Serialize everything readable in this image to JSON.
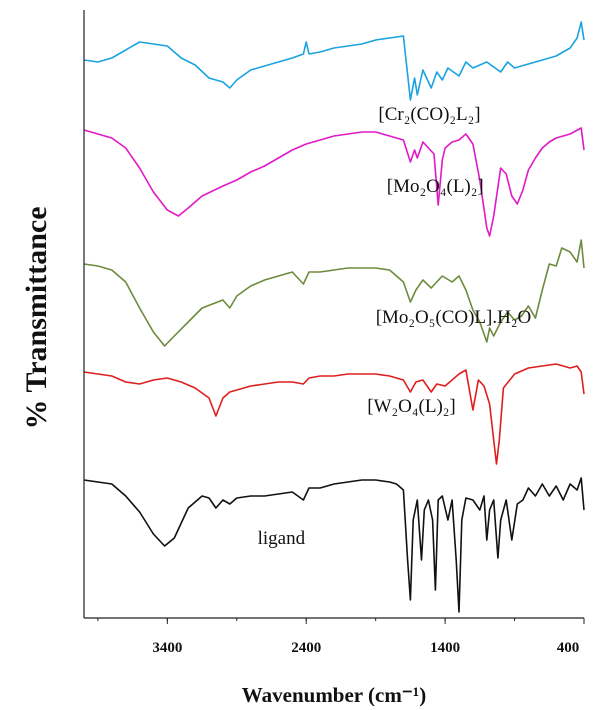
{
  "chart_data": {
    "type": "line",
    "title": "",
    "xlabel": "Wavenumber (cm⁻¹)",
    "ylabel": "% Transmittance",
    "xlim": [
      4000,
      400
    ],
    "x_reversed": true,
    "xticks": [
      3400,
      2400,
      1400,
      400
    ],
    "yticks": [],
    "grid": false,
    "legend": "inline labels under each trace",
    "colors": {
      "Cr": "#1aa3e0",
      "Mo2O4": "#e019c9",
      "Mo2O5": "#6e8b3d",
      "W": "#e01e1e",
      "ligand": "#111111"
    },
    "series": [
      {
        "name": "[Cr₂(CO)₂L₂]",
        "key": "Cr",
        "points": [
          [
            4000,
            60
          ],
          [
            3900,
            62
          ],
          [
            3800,
            58
          ],
          [
            3700,
            50
          ],
          [
            3600,
            42
          ],
          [
            3500,
            44
          ],
          [
            3400,
            46
          ],
          [
            3300,
            58
          ],
          [
            3200,
            65
          ],
          [
            3100,
            78
          ],
          [
            3000,
            82
          ],
          [
            2950,
            88
          ],
          [
            2900,
            80
          ],
          [
            2800,
            70
          ],
          [
            2700,
            66
          ],
          [
            2600,
            62
          ],
          [
            2500,
            58
          ],
          [
            2420,
            54
          ],
          [
            2400,
            42
          ],
          [
            2380,
            54
          ],
          [
            2300,
            52
          ],
          [
            2200,
            48
          ],
          [
            2100,
            46
          ],
          [
            2000,
            44
          ],
          [
            1900,
            40
          ],
          [
            1800,
            38
          ],
          [
            1700,
            36
          ],
          [
            1650,
            100
          ],
          [
            1620,
            78
          ],
          [
            1600,
            95
          ],
          [
            1560,
            70
          ],
          [
            1500,
            88
          ],
          [
            1460,
            72
          ],
          [
            1420,
            80
          ],
          [
            1380,
            68
          ],
          [
            1300,
            76
          ],
          [
            1250,
            62
          ],
          [
            1200,
            68
          ],
          [
            1100,
            62
          ],
          [
            1000,
            72
          ],
          [
            950,
            62
          ],
          [
            900,
            68
          ],
          [
            800,
            64
          ],
          [
            700,
            60
          ],
          [
            600,
            56
          ],
          [
            500,
            48
          ],
          [
            450,
            38
          ],
          [
            420,
            22
          ],
          [
            400,
            40
          ]
        ],
        "label_pos": [
          1880,
          120
        ]
      },
      {
        "name": "[Mo₂O₄(L)₂]",
        "key": "Mo2O4",
        "points": [
          [
            4000,
            130
          ],
          [
            3900,
            134
          ],
          [
            3800,
            138
          ],
          [
            3700,
            148
          ],
          [
            3600,
            168
          ],
          [
            3500,
            192
          ],
          [
            3400,
            210
          ],
          [
            3320,
            216
          ],
          [
            3250,
            208
          ],
          [
            3150,
            196
          ],
          [
            3000,
            186
          ],
          [
            2900,
            180
          ],
          [
            2800,
            172
          ],
          [
            2700,
            166
          ],
          [
            2600,
            158
          ],
          [
            2500,
            150
          ],
          [
            2400,
            144
          ],
          [
            2300,
            140
          ],
          [
            2200,
            136
          ],
          [
            2100,
            134
          ],
          [
            2000,
            132
          ],
          [
            1900,
            132
          ],
          [
            1800,
            136
          ],
          [
            1700,
            140
          ],
          [
            1650,
            162
          ],
          [
            1620,
            150
          ],
          [
            1600,
            158
          ],
          [
            1560,
            142
          ],
          [
            1480,
            154
          ],
          [
            1450,
            205
          ],
          [
            1420,
            160
          ],
          [
            1400,
            148
          ],
          [
            1350,
            142
          ],
          [
            1300,
            140
          ],
          [
            1250,
            134
          ],
          [
            1200,
            144
          ],
          [
            1150,
            180
          ],
          [
            1100,
            228
          ],
          [
            1080,
            236
          ],
          [
            1050,
            216
          ],
          [
            1000,
            168
          ],
          [
            960,
            174
          ],
          [
            920,
            196
          ],
          [
            880,
            204
          ],
          [
            840,
            190
          ],
          [
            800,
            170
          ],
          [
            750,
            158
          ],
          [
            700,
            148
          ],
          [
            650,
            142
          ],
          [
            600,
            138
          ],
          [
            500,
            134
          ],
          [
            420,
            128
          ],
          [
            400,
            150
          ]
        ],
        "label_pos": [
          1820,
          192
        ]
      },
      {
        "name": "[Mo₂O₅(CO)L].H₂O",
        "key": "Mo2O5",
        "points": [
          [
            4000,
            264
          ],
          [
            3900,
            266
          ],
          [
            3800,
            270
          ],
          [
            3700,
            282
          ],
          [
            3600,
            308
          ],
          [
            3500,
            332
          ],
          [
            3420,
            346
          ],
          [
            3350,
            336
          ],
          [
            3250,
            322
          ],
          [
            3150,
            308
          ],
          [
            3000,
            300
          ],
          [
            2950,
            308
          ],
          [
            2900,
            296
          ],
          [
            2800,
            286
          ],
          [
            2700,
            280
          ],
          [
            2600,
            276
          ],
          [
            2500,
            272
          ],
          [
            2420,
            284
          ],
          [
            2380,
            272
          ],
          [
            2300,
            272
          ],
          [
            2200,
            270
          ],
          [
            2100,
            268
          ],
          [
            2000,
            268
          ],
          [
            1900,
            268
          ],
          [
            1800,
            270
          ],
          [
            1700,
            282
          ],
          [
            1650,
            302
          ],
          [
            1610,
            290
          ],
          [
            1560,
            280
          ],
          [
            1500,
            288
          ],
          [
            1420,
            276
          ],
          [
            1350,
            282
          ],
          [
            1300,
            276
          ],
          [
            1250,
            290
          ],
          [
            1200,
            310
          ],
          [
            1150,
            322
          ],
          [
            1100,
            342
          ],
          [
            1080,
            328
          ],
          [
            1050,
            336
          ],
          [
            1000,
            322
          ],
          [
            950,
            312
          ],
          [
            900,
            320
          ],
          [
            850,
            316
          ],
          [
            800,
            306
          ],
          [
            750,
            318
          ],
          [
            700,
            290
          ],
          [
            650,
            264
          ],
          [
            600,
            266
          ],
          [
            560,
            248
          ],
          [
            500,
            252
          ],
          [
            450,
            262
          ],
          [
            420,
            240
          ],
          [
            400,
            268
          ]
        ],
        "label_pos": [
          1900,
          323
        ]
      },
      {
        "name": "[W₂O₄(L)₂]",
        "key": "W",
        "points": [
          [
            4000,
            372
          ],
          [
            3900,
            374
          ],
          [
            3800,
            376
          ],
          [
            3700,
            382
          ],
          [
            3600,
            384
          ],
          [
            3500,
            380
          ],
          [
            3400,
            378
          ],
          [
            3300,
            382
          ],
          [
            3200,
            388
          ],
          [
            3100,
            398
          ],
          [
            3050,
            416
          ],
          [
            3000,
            398
          ],
          [
            2950,
            392
          ],
          [
            2800,
            386
          ],
          [
            2700,
            384
          ],
          [
            2600,
            382
          ],
          [
            2500,
            382
          ],
          [
            2420,
            384
          ],
          [
            2380,
            378
          ],
          [
            2300,
            376
          ],
          [
            2200,
            376
          ],
          [
            2100,
            374
          ],
          [
            2000,
            374
          ],
          [
            1900,
            374
          ],
          [
            1800,
            376
          ],
          [
            1700,
            380
          ],
          [
            1650,
            392
          ],
          [
            1610,
            382
          ],
          [
            1560,
            380
          ],
          [
            1500,
            392
          ],
          [
            1460,
            384
          ],
          [
            1400,
            386
          ],
          [
            1300,
            374
          ],
          [
            1250,
            370
          ],
          [
            1200,
            410
          ],
          [
            1160,
            380
          ],
          [
            1120,
            386
          ],
          [
            1080,
            404
          ],
          [
            1050,
            440
          ],
          [
            1030,
            464
          ],
          [
            1010,
            440
          ],
          [
            980,
            388
          ],
          [
            900,
            374
          ],
          [
            800,
            368
          ],
          [
            700,
            366
          ],
          [
            600,
            364
          ],
          [
            500,
            368
          ],
          [
            450,
            366
          ],
          [
            420,
            372
          ],
          [
            400,
            394
          ]
        ],
        "label_pos": [
          1960,
          412
        ]
      },
      {
        "name": "ligand",
        "key": "ligand",
        "points": [
          [
            4000,
            480
          ],
          [
            3900,
            482
          ],
          [
            3800,
            484
          ],
          [
            3700,
            496
          ],
          [
            3600,
            512
          ],
          [
            3500,
            534
          ],
          [
            3420,
            546
          ],
          [
            3350,
            538
          ],
          [
            3250,
            508
          ],
          [
            3150,
            496
          ],
          [
            3100,
            498
          ],
          [
            3050,
            508
          ],
          [
            3000,
            500
          ],
          [
            2950,
            504
          ],
          [
            2900,
            498
          ],
          [
            2800,
            496
          ],
          [
            2700,
            496
          ],
          [
            2600,
            494
          ],
          [
            2500,
            492
          ],
          [
            2420,
            500
          ],
          [
            2380,
            488
          ],
          [
            2300,
            488
          ],
          [
            2200,
            484
          ],
          [
            2100,
            482
          ],
          [
            2000,
            480
          ],
          [
            1900,
            480
          ],
          [
            1800,
            482
          ],
          [
            1750,
            484
          ],
          [
            1700,
            490
          ],
          [
            1670,
            560
          ],
          [
            1650,
            600
          ],
          [
            1630,
            520
          ],
          [
            1600,
            500
          ],
          [
            1570,
            560
          ],
          [
            1550,
            510
          ],
          [
            1520,
            500
          ],
          [
            1490,
            520
          ],
          [
            1470,
            590
          ],
          [
            1450,
            500
          ],
          [
            1420,
            496
          ],
          [
            1380,
            520
          ],
          [
            1350,
            500
          ],
          [
            1320,
            560
          ],
          [
            1300,
            612
          ],
          [
            1280,
            520
          ],
          [
            1250,
            498
          ],
          [
            1200,
            500
          ],
          [
            1150,
            510
          ],
          [
            1120,
            496
          ],
          [
            1100,
            540
          ],
          [
            1080,
            510
          ],
          [
            1050,
            500
          ],
          [
            1020,
            558
          ],
          [
            1000,
            520
          ],
          [
            960,
            500
          ],
          [
            920,
            540
          ],
          [
            880,
            504
          ],
          [
            840,
            500
          ],
          [
            800,
            488
          ],
          [
            750,
            496
          ],
          [
            700,
            484
          ],
          [
            650,
            496
          ],
          [
            600,
            486
          ],
          [
            550,
            500
          ],
          [
            500,
            484
          ],
          [
            450,
            490
          ],
          [
            420,
            478
          ],
          [
            400,
            510
          ]
        ],
        "label_pos": [
          2750,
          544
        ]
      }
    ],
    "series_labels": {
      "Cr": "[Cr₂(CO)₂L₂]",
      "Mo2O4": "[Mo₂O₄(L)₂]",
      "Mo2O5": "[Mo₂O₅(CO)L].H₂O",
      "W": "[W₂O₄(L)₂]",
      "ligand": "ligand"
    }
  }
}
